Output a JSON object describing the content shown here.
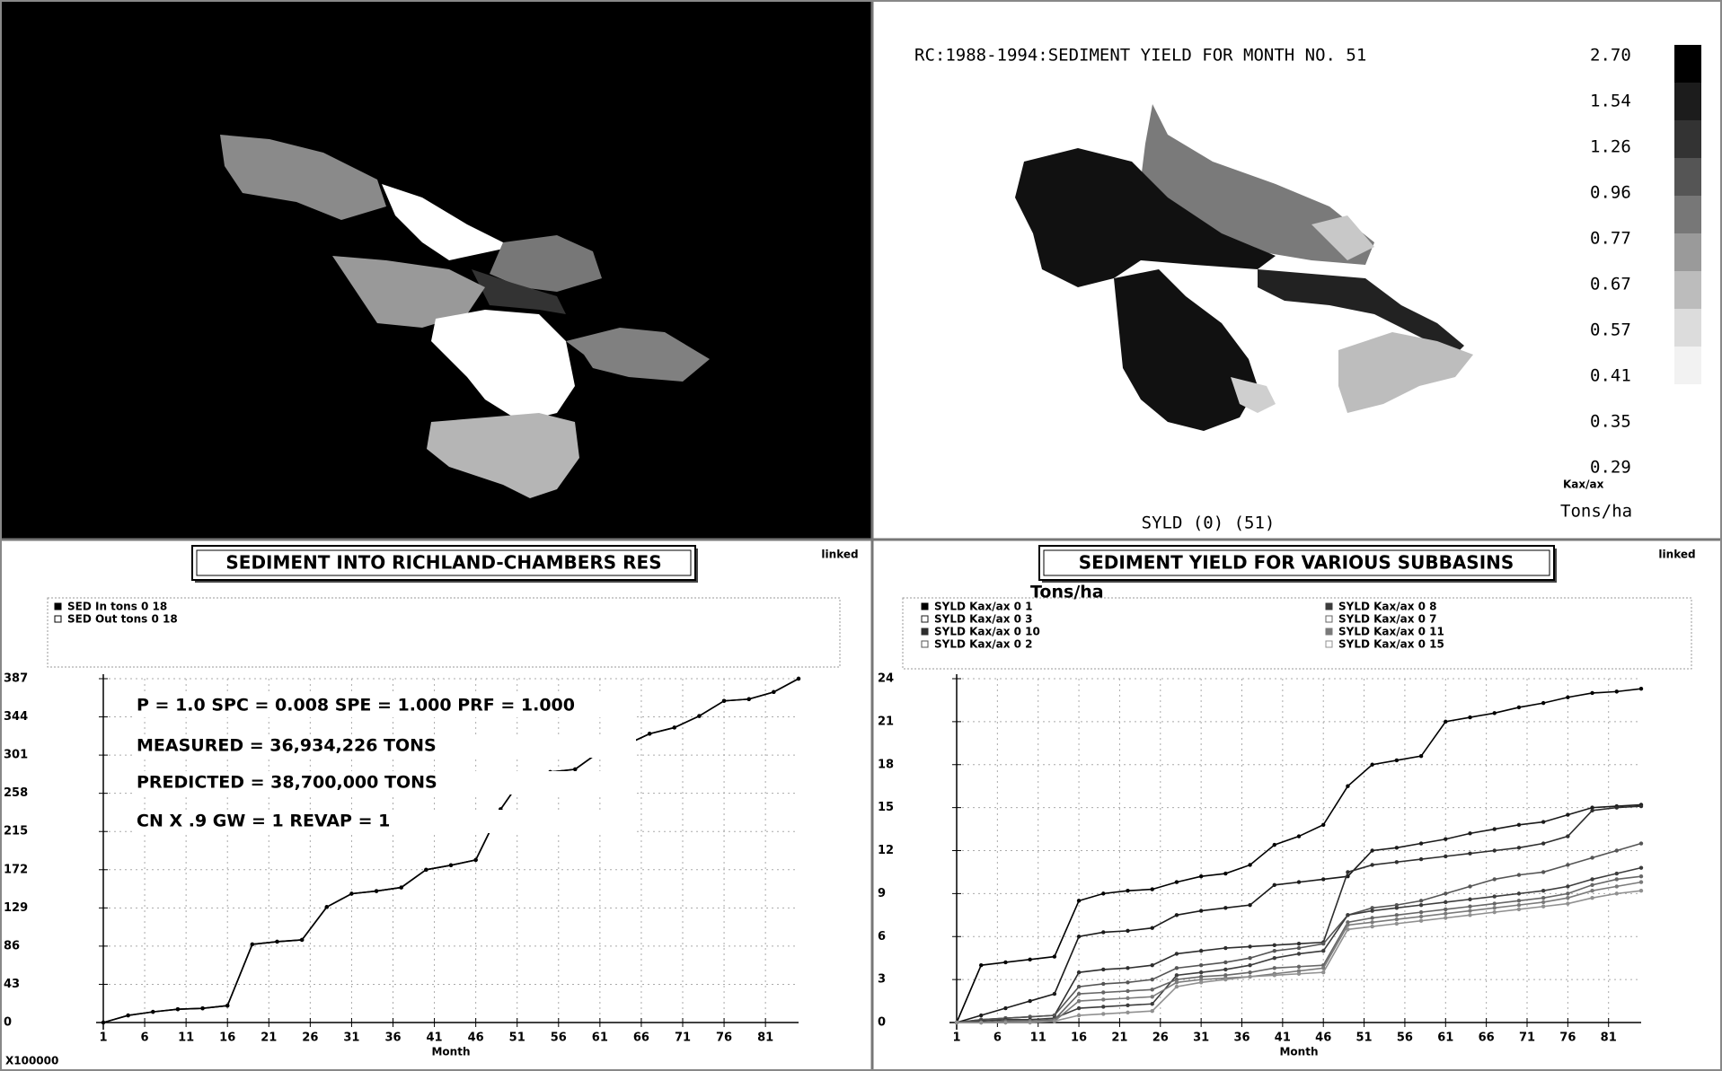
{
  "map_panel": {
    "title": "RC:1988-1994:SEDIMENT YIELD FOR MONTH NO. 51",
    "legend_labels": [
      "2.70",
      "1.54",
      "1.26",
      "0.96",
      "0.77",
      "0.67",
      "0.57",
      "0.41",
      "0.35",
      "0.29"
    ],
    "legend_unit_code": "Kax/ax",
    "legend_unit": "Tons/ha",
    "caption": "SYLD (0) (51)"
  },
  "chart_data": [
    {
      "type": "line",
      "title": "SEDIMENT INTO RICHLAND-CHAMBERS RES",
      "status": "linked",
      "xlabel": "Month",
      "y_multiplier_label": "X100000",
      "annotations": [
        "P = 1.0  SPC = 0.008 SPE = 1.000 PRF = 1.000",
        "MEASURED = 36,934,226 TONS",
        "PREDICTED = 38,700,000 TONS",
        "CN X .9  GW = 1  REVAP = 1"
      ],
      "x": [
        1,
        4,
        7,
        10,
        13,
        16,
        19,
        22,
        25,
        28,
        31,
        34,
        37,
        40,
        43,
        46,
        49,
        52,
        55,
        58,
        61,
        64,
        67,
        70,
        73,
        76,
        79,
        82,
        85
      ],
      "series": [
        {
          "name": "SED In tons 0 18",
          "color": "#000000",
          "values": [
            0,
            8,
            12,
            15,
            16,
            19,
            88,
            91,
            93,
            130,
            145,
            148,
            152,
            172,
            177,
            183,
            240,
            280,
            282,
            285,
            305,
            312,
            325,
            332,
            345,
            362,
            364,
            372,
            387
          ]
        },
        {
          "name": "SED Out tons 0 18",
          "color": "#000000",
          "values": [
            0,
            8,
            12,
            15,
            16,
            19,
            88,
            91,
            93,
            130,
            145,
            148,
            152,
            172,
            177,
            183,
            240,
            280,
            282,
            285,
            305,
            312,
            325,
            332,
            345,
            362,
            364,
            372,
            387
          ]
        }
      ],
      "xlim": [
        1,
        85
      ],
      "xticks": [
        1,
        6,
        11,
        16,
        21,
        26,
        31,
        36,
        41,
        46,
        51,
        56,
        61,
        66,
        71,
        76,
        81
      ],
      "ylim": [
        0,
        387
      ],
      "yticks": [
        0,
        43,
        86,
        129,
        172,
        215,
        258,
        301,
        344,
        387
      ],
      "grid": true
    },
    {
      "type": "line",
      "title": "SEDIMENT YIELD FOR VARIOUS SUBBASINS",
      "status": "linked",
      "xlabel": "Month",
      "ylabel": "Tons/ha",
      "x": [
        1,
        4,
        7,
        10,
        13,
        16,
        19,
        22,
        25,
        28,
        31,
        34,
        37,
        40,
        43,
        46,
        49,
        52,
        55,
        58,
        61,
        64,
        67,
        70,
        73,
        76,
        79,
        82,
        85
      ],
      "series": [
        {
          "name": "SYLD Kax/ax 0 1",
          "color": "#000000",
          "values": [
            0,
            4,
            4.2,
            4.4,
            4.6,
            8.5,
            9,
            9.2,
            9.3,
            9.8,
            10.2,
            10.4,
            11,
            12.4,
            13,
            13.8,
            16.5,
            18,
            18.3,
            18.6,
            21,
            21.3,
            21.6,
            22,
            22.3,
            22.7,
            23,
            23.1,
            23.3
          ]
        },
        {
          "name": "SYLD Kax/ax 0 3",
          "color": "#1a1a1a",
          "values": [
            0,
            0.5,
            1,
            1.5,
            2,
            6,
            6.3,
            6.4,
            6.6,
            7.5,
            7.8,
            8,
            8.2,
            9.6,
            9.8,
            10,
            10.2,
            12,
            12.2,
            12.5,
            12.8,
            13.2,
            13.5,
            13.8,
            14,
            14.5,
            15,
            15.1,
            15.2
          ]
        },
        {
          "name": "SYLD Kax/ax 0 10",
          "color": "#2e2e2e",
          "values": [
            0,
            0.2,
            0.3,
            0.4,
            0.5,
            3.5,
            3.7,
            3.8,
            4,
            4.8,
            5,
            5.2,
            5.3,
            5.4,
            5.5,
            5.6,
            10.5,
            11,
            11.2,
            11.4,
            11.6,
            11.8,
            12,
            12.2,
            12.5,
            13,
            14.8,
            15,
            15.1
          ]
        },
        {
          "name": "SYLD Kax/ax 0 2",
          "color": "#555555",
          "values": [
            0,
            0.2,
            0.3,
            0.4,
            0.5,
            2.5,
            2.7,
            2.8,
            3,
            3.8,
            4,
            4.2,
            4.5,
            5,
            5.2,
            5.5,
            7.5,
            8,
            8.2,
            8.5,
            9,
            9.5,
            10,
            10.3,
            10.5,
            11,
            11.5,
            12,
            12.5
          ]
        },
        {
          "name": "SYLD Kax/ax 0 8",
          "color": "#3c3c3c",
          "values": [
            0,
            0.1,
            0.2,
            0.2,
            0.3,
            1,
            1.1,
            1.2,
            1.3,
            3.3,
            3.5,
            3.7,
            4,
            4.5,
            4.8,
            5,
            7.5,
            7.8,
            8,
            8.2,
            8.4,
            8.6,
            8.8,
            9,
            9.2,
            9.5,
            10,
            10.4,
            10.8
          ]
        },
        {
          "name": "SYLD Kax/ax 0 7",
          "color": "#666666",
          "values": [
            0,
            0,
            0.1,
            0.1,
            0.2,
            2,
            2.1,
            2.2,
            2.3,
            3,
            3.2,
            3.3,
            3.5,
            3.8,
            3.9,
            4,
            7,
            7.3,
            7.5,
            7.7,
            7.9,
            8.1,
            8.3,
            8.5,
            8.7,
            9,
            9.6,
            10,
            10.2
          ]
        },
        {
          "name": "SYLD Kax/ax 0 11",
          "color": "#7a7a7a",
          "values": [
            0,
            0,
            0,
            0.1,
            0.1,
            1.5,
            1.6,
            1.7,
            1.8,
            2.8,
            3,
            3.1,
            3.2,
            3.4,
            3.6,
            3.8,
            6.8,
            7,
            7.2,
            7.4,
            7.6,
            7.8,
            8,
            8.2,
            8.4,
            8.7,
            9.2,
            9.5,
            9.8
          ]
        },
        {
          "name": "SYLD Kax/ax 0 15",
          "color": "#909090",
          "values": [
            0,
            0,
            0,
            0,
            0.1,
            0.5,
            0.6,
            0.7,
            0.8,
            2.5,
            2.8,
            3,
            3.2,
            3.3,
            3.4,
            3.5,
            6.5,
            6.7,
            6.9,
            7.1,
            7.3,
            7.5,
            7.7,
            7.9,
            8.1,
            8.3,
            8.7,
            9,
            9.2
          ]
        }
      ],
      "xlim": [
        1,
        85
      ],
      "xticks": [
        1,
        6,
        11,
        16,
        21,
        26,
        31,
        36,
        41,
        46,
        51,
        56,
        61,
        66,
        71,
        76,
        81
      ],
      "ylim": [
        0,
        24
      ],
      "yticks": [
        0,
        3,
        6,
        9,
        12,
        15,
        18,
        21,
        24
      ],
      "grid": true
    }
  ]
}
